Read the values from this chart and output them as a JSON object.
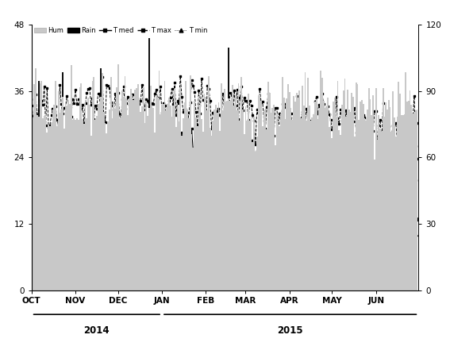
{
  "title": "",
  "left_ylim": [
    0,
    48
  ],
  "right_ylim": [
    0,
    120
  ],
  "left_yticks": [
    0,
    12,
    24,
    36,
    48
  ],
  "right_yticks": [
    0,
    30,
    60,
    90,
    120
  ],
  "months": [
    "OCT",
    "NOV",
    "DEC",
    "JAN",
    "FEB",
    "MAR",
    "APR",
    "MAY",
    "JUN"
  ],
  "hum_color": "#c8c8c8",
  "rain_color": "#111111",
  "t_med_color": "#000000",
  "t_max_color": "#000000",
  "t_min_color": "#000000",
  "days_per_month": [
    31,
    30,
    31,
    31,
    28,
    31,
    30,
    31,
    30
  ],
  "seed": 42
}
